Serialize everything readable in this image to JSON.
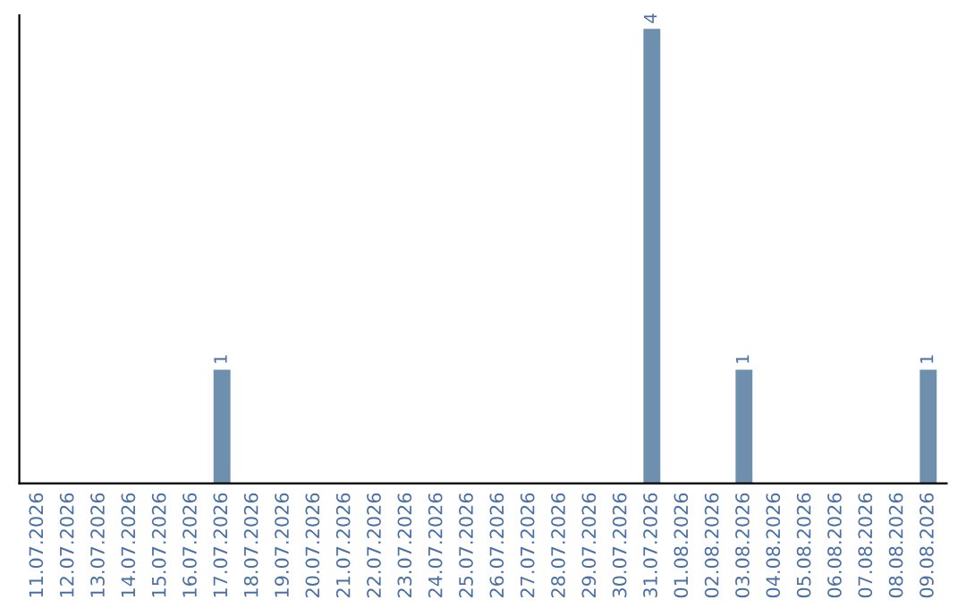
{
  "chart_data": {
    "type": "bar",
    "categories": [
      "11.07.2026",
      "12.07.2026",
      "13.07.2026",
      "14.07.2026",
      "15.07.2026",
      "16.07.2026",
      "17.07.2026",
      "18.07.2026",
      "19.07.2026",
      "20.07.2026",
      "21.07.2026",
      "22.07.2026",
      "23.07.2026",
      "24.07.2026",
      "25.07.2026",
      "26.07.2026",
      "27.07.2026",
      "28.07.2026",
      "29.07.2026",
      "30.07.2026",
      "31.07.2026",
      "01.08.2026",
      "02.08.2026",
      "03.08.2026",
      "04.08.2026",
      "05.08.2026",
      "06.08.2026",
      "07.08.2026",
      "08.08.2026",
      "09.08.2026"
    ],
    "values": [
      0,
      0,
      0,
      0,
      0,
      0,
      1,
      0,
      0,
      0,
      0,
      0,
      0,
      0,
      0,
      0,
      0,
      0,
      0,
      0,
      4,
      0,
      0,
      1,
      0,
      0,
      0,
      0,
      0,
      1
    ],
    "value_labels": [
      null,
      null,
      null,
      null,
      null,
      null,
      "1",
      null,
      null,
      null,
      null,
      null,
      null,
      null,
      null,
      null,
      null,
      null,
      null,
      null,
      "4",
      null,
      null,
      "1",
      null,
      null,
      null,
      null,
      null,
      "1"
    ],
    "color": "#6e8fae",
    "tick_labels": "x",
    "grid": false,
    "legend": false
  }
}
